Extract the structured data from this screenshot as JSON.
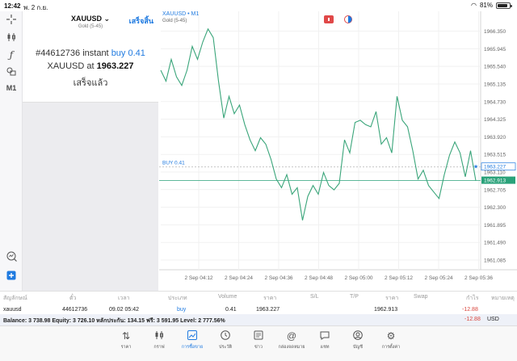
{
  "status_bar": {
    "time": "12:42",
    "date": "พ. 2 ก.ย.",
    "battery": "81%"
  },
  "left_toolbar": {
    "timeframe": "M1",
    "icons": [
      "crosshair-icon",
      "candlestick-icon",
      "function-icon",
      "objects-icon",
      "timeframe-icon",
      "search-chart-icon",
      "add-icon"
    ]
  },
  "order_panel": {
    "symbol": "XAUUSD",
    "chevron": "⌄",
    "description": "Gold (5-45)",
    "done_label": "เสร็จสิ้น",
    "ticket": "#44612736",
    "order_type": "instant",
    "direction": "buy",
    "volume": "0.41",
    "price_prefix": "XAUUSD at",
    "price": "1963.227",
    "status": "เสร็จแล้ว"
  },
  "chart": {
    "header": "XAUUSD • M1",
    "subheader": "Gold (5-45)",
    "buy_label": "BUY 0.41",
    "colors": {
      "line": "#3aa57a",
      "price_line": "#2aa27a",
      "buy_line": "#bdbdbd",
      "buy_tag": "#1f7ae0",
      "current_tag": "#2aa27a"
    }
  },
  "chart_data": {
    "type": "line",
    "title": "XAUUSD • M1",
    "x_tick_labels": [
      "2 Sep 04:12",
      "2 Sep 04:24",
      "2 Sep 04:36",
      "2 Sep 04:48",
      "2 Sep 05:00",
      "2 Sep 05:12",
      "2 Sep 05:24",
      "2 Sep 05:36"
    ],
    "y_tick_labels": [
      "1966.350",
      "1965.945",
      "1965.540",
      "1965.135",
      "1964.730",
      "1964.325",
      "1963.920",
      "1963.515",
      "1963.110",
      "1962.705",
      "1962.300",
      "1961.895",
      "1961.490",
      "1961.085"
    ],
    "ylim": [
      1960.9,
      1966.62
    ],
    "x_minutes": [
      0,
      50
    ],
    "series": [
      {
        "x": [
          0,
          1,
          2,
          3,
          4,
          5,
          6,
          7,
          8,
          9,
          10,
          11,
          12,
          13,
          14,
          15,
          16,
          17,
          18,
          19,
          20,
          21,
          22,
          23,
          24,
          25,
          26,
          27,
          28,
          29,
          30,
          31,
          32,
          33,
          34,
          35,
          36,
          37,
          38,
          39,
          40,
          41,
          42,
          43,
          44,
          45,
          46,
          47,
          48,
          49,
          50,
          51,
          52,
          53,
          54,
          55,
          56,
          57,
          58,
          59,
          60
        ],
        "values": [
          1965.45,
          1965.2,
          1965.7,
          1965.3,
          1965.1,
          1965.45,
          1966.0,
          1965.7,
          1966.1,
          1966.4,
          1966.2,
          1965.2,
          1964.35,
          1964.85,
          1964.45,
          1964.65,
          1964.2,
          1963.85,
          1963.6,
          1963.9,
          1963.75,
          1963.4,
          1962.95,
          1962.75,
          1963.05,
          1962.6,
          1962.75,
          1962.0,
          1962.55,
          1962.8,
          1962.6,
          1963.1,
          1962.8,
          1962.7,
          1962.85,
          1963.85,
          1963.55,
          1964.25,
          1964.3,
          1964.2,
          1964.15,
          1964.5,
          1963.75,
          1963.9,
          1963.55,
          1964.85,
          1964.3,
          1964.15,
          1963.6,
          1962.95,
          1963.15,
          1962.8,
          1962.65,
          1962.5,
          1963.05,
          1963.5,
          1963.8,
          1963.55,
          1963.0,
          1963.6,
          1962.91
        ]
      }
    ],
    "buy_price": 1963.227,
    "current_price": 1962.913,
    "grid": true
  },
  "table": {
    "headers": [
      "สัญลักษณ์",
      "ตั๋ว",
      "เวลา",
      "ประเภท",
      "Volume",
      "ราคา",
      "S/L",
      "T/P",
      "ราคา",
      "Swap",
      "กำไร",
      "หมายเหตุ"
    ],
    "row": {
      "symbol": "xauusd",
      "ticket": "44612736",
      "time": "09.02 05:42",
      "type": "buy",
      "volume": "0.41",
      "open_price": "1963.227",
      "sl": "",
      "tp": "",
      "price": "1962.913",
      "swap": "",
      "profit": "-12.88",
      "comment": ""
    }
  },
  "balance": {
    "text": "Balance: 3 738.98 Equity: 3 726.10 หลักประกัน: 134.15 ฟรี: 3 591.95 Level: 2 777.56%",
    "profit": "-12.88",
    "currency": "USD"
  },
  "tabbar": {
    "items": [
      {
        "label": "ราคา",
        "icon": "quotes-icon"
      },
      {
        "label": "กราฟ",
        "icon": "chart-icon"
      },
      {
        "label": "การซื้อขาย",
        "icon": "trade-icon"
      },
      {
        "label": "ประวัติ",
        "icon": "history-icon"
      },
      {
        "label": "ข่าว",
        "icon": "news-icon"
      },
      {
        "label": "กล่องจดหมาย",
        "icon": "mailbox-icon"
      },
      {
        "label": "แชท",
        "icon": "chat-icon"
      },
      {
        "label": "บัญชี",
        "icon": "account-icon"
      },
      {
        "label": "การตั้งค่า",
        "icon": "settings-icon"
      }
    ],
    "active_index": 2
  }
}
